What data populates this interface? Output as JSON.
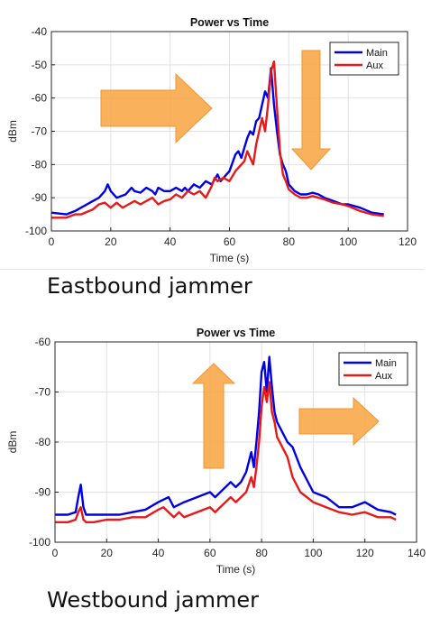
{
  "captions": {
    "east": "Eastbound jammer",
    "west": "Westbound jammer"
  },
  "colors": {
    "main": "#0000e6",
    "aux": "#e61a1a",
    "arrow_fill": "#f9a94b",
    "arrow_edge": "#f08a1c",
    "grid": "#e2e2e2"
  },
  "chart_data": [
    {
      "id": "east",
      "type": "line",
      "title": "Power vs Time",
      "xlabel": "Time (s)",
      "ylabel": "dBm",
      "xlim": [
        0,
        120
      ],
      "ylim": [
        -100,
        -40
      ],
      "xticks": [
        0,
        20,
        40,
        60,
        80,
        100,
        120
      ],
      "yticks": [
        -40,
        -50,
        -60,
        -70,
        -80,
        -90,
        -100
      ],
      "grid": true,
      "legend": "top-right",
      "series": [
        {
          "name": "Main",
          "color": "#0000e6",
          "x": [
            0,
            5,
            8,
            10,
            14,
            16,
            18,
            19,
            20,
            22,
            25,
            27,
            28,
            30,
            32,
            34,
            35,
            36,
            38,
            40,
            42,
            44,
            45,
            46,
            48,
            50,
            52,
            54,
            56,
            57,
            58,
            60,
            62,
            63,
            64,
            65,
            66,
            67,
            68,
            69,
            70,
            71,
            72,
            73,
            74,
            75,
            76,
            77,
            78,
            79,
            80,
            82,
            84,
            86,
            88,
            90,
            92,
            95,
            98,
            100,
            104,
            108,
            112
          ],
          "y": [
            -94.5,
            -95,
            -94,
            -93,
            -91,
            -90,
            -88,
            -86,
            -88,
            -90,
            -89,
            -87,
            -88,
            -88.5,
            -87,
            -88,
            -89,
            -87,
            -88,
            -88,
            -87,
            -88,
            -87,
            -88,
            -86,
            -87,
            -85,
            -86,
            -83,
            -85,
            -84,
            -82,
            -77,
            -76,
            -78,
            -75,
            -72,
            -70,
            -71,
            -67,
            -66,
            -62,
            -58,
            -60,
            -51,
            -62,
            -70,
            -77,
            -80,
            -82,
            -86,
            -88,
            -89,
            -89,
            -88.5,
            -89,
            -90,
            -91,
            -92,
            -92,
            -93,
            -94.5,
            -95
          ]
        },
        {
          "name": "Aux",
          "color": "#e61a1a",
          "x": [
            0,
            5,
            8,
            10,
            14,
            16,
            18,
            20,
            22,
            24,
            26,
            28,
            30,
            32,
            34,
            36,
            38,
            40,
            42,
            44,
            46,
            48,
            50,
            52,
            54,
            55,
            56,
            58,
            60,
            62,
            64,
            65,
            66,
            67,
            68,
            69,
            70,
            71,
            72,
            73,
            74,
            75,
            76,
            77,
            78,
            79,
            80,
            82,
            84,
            86,
            88,
            90,
            92,
            95,
            98,
            100,
            104,
            108,
            112
          ],
          "y": [
            -96,
            -96,
            -95,
            -95,
            -93.5,
            -92,
            -91.5,
            -93,
            -91.5,
            -93,
            -92,
            -91,
            -92,
            -91,
            -90,
            -92,
            -91,
            -90.5,
            -89,
            -90,
            -88,
            -89,
            -88,
            -90,
            -86.5,
            -84,
            -85,
            -84,
            -85,
            -82,
            -80,
            -79,
            -76,
            -78,
            -80,
            -74,
            -70,
            -66,
            -70,
            -62,
            -52,
            -49,
            -63,
            -76,
            -83,
            -85,
            -87.5,
            -89,
            -90,
            -90,
            -89.5,
            -90,
            -90.5,
            -91.5,
            -92,
            -92.5,
            -94,
            -95,
            -95.5
          ]
        }
      ]
    },
    {
      "id": "west",
      "type": "line",
      "title": "Power vs Time",
      "xlabel": "Time (s)",
      "ylabel": "dBm",
      "xlim": [
        0,
        140
      ],
      "ylim": [
        -100,
        -60
      ],
      "xticks": [
        0,
        20,
        40,
        60,
        80,
        100,
        120,
        140
      ],
      "yticks": [
        -60,
        -70,
        -80,
        -90,
        -100
      ],
      "grid": true,
      "legend": "top-right",
      "series": [
        {
          "name": "Main",
          "color": "#0000e6",
          "x": [
            0,
            5,
            8,
            9,
            10,
            11,
            12,
            15,
            20,
            25,
            30,
            35,
            40,
            44,
            46,
            50,
            55,
            60,
            62,
            65,
            68,
            70,
            72,
            74,
            76,
            77,
            78,
            79,
            80,
            81,
            82,
            83,
            84,
            85,
            86,
            88,
            90,
            92,
            95,
            100,
            105,
            110,
            115,
            120,
            125,
            130,
            132
          ],
          "y": [
            -94.5,
            -94.5,
            -94,
            -91,
            -88.5,
            -93,
            -94.5,
            -94.5,
            -94.5,
            -94.5,
            -94,
            -93.5,
            -92,
            -91,
            -93,
            -92,
            -91,
            -90,
            -91,
            -89.5,
            -88,
            -89,
            -88,
            -86,
            -82,
            -85,
            -80,
            -74,
            -66,
            -64,
            -70,
            -63,
            -69,
            -74,
            -76,
            -78,
            -80,
            -81,
            -85,
            -90,
            -91,
            -93,
            -93,
            -92,
            -93.5,
            -94,
            -94.5
          ]
        },
        {
          "name": "Aux",
          "color": "#e61a1a",
          "x": [
            0,
            5,
            8,
            9,
            10,
            11,
            12,
            15,
            20,
            25,
            30,
            35,
            40,
            42,
            44,
            46,
            48,
            50,
            55,
            60,
            62,
            65,
            68,
            70,
            72,
            74,
            76,
            77,
            78,
            79,
            80,
            81,
            82,
            83,
            84,
            85,
            86,
            88,
            90,
            92,
            95,
            100,
            105,
            110,
            115,
            120,
            125,
            130,
            132
          ],
          "y": [
            -96,
            -96,
            -95.5,
            -94,
            -93,
            -95.5,
            -96,
            -96,
            -95.5,
            -95.5,
            -95,
            -95,
            -93.5,
            -93,
            -94,
            -95,
            -94,
            -95,
            -94,
            -93,
            -94,
            -92.5,
            -91,
            -92,
            -91,
            -90,
            -87,
            -89,
            -85,
            -80,
            -73,
            -69,
            -72,
            -68,
            -74,
            -76,
            -79,
            -81,
            -83,
            -87,
            -90,
            -92,
            -93,
            -94,
            -94.5,
            -94,
            -95,
            -95,
            -95.5
          ]
        }
      ]
    }
  ]
}
